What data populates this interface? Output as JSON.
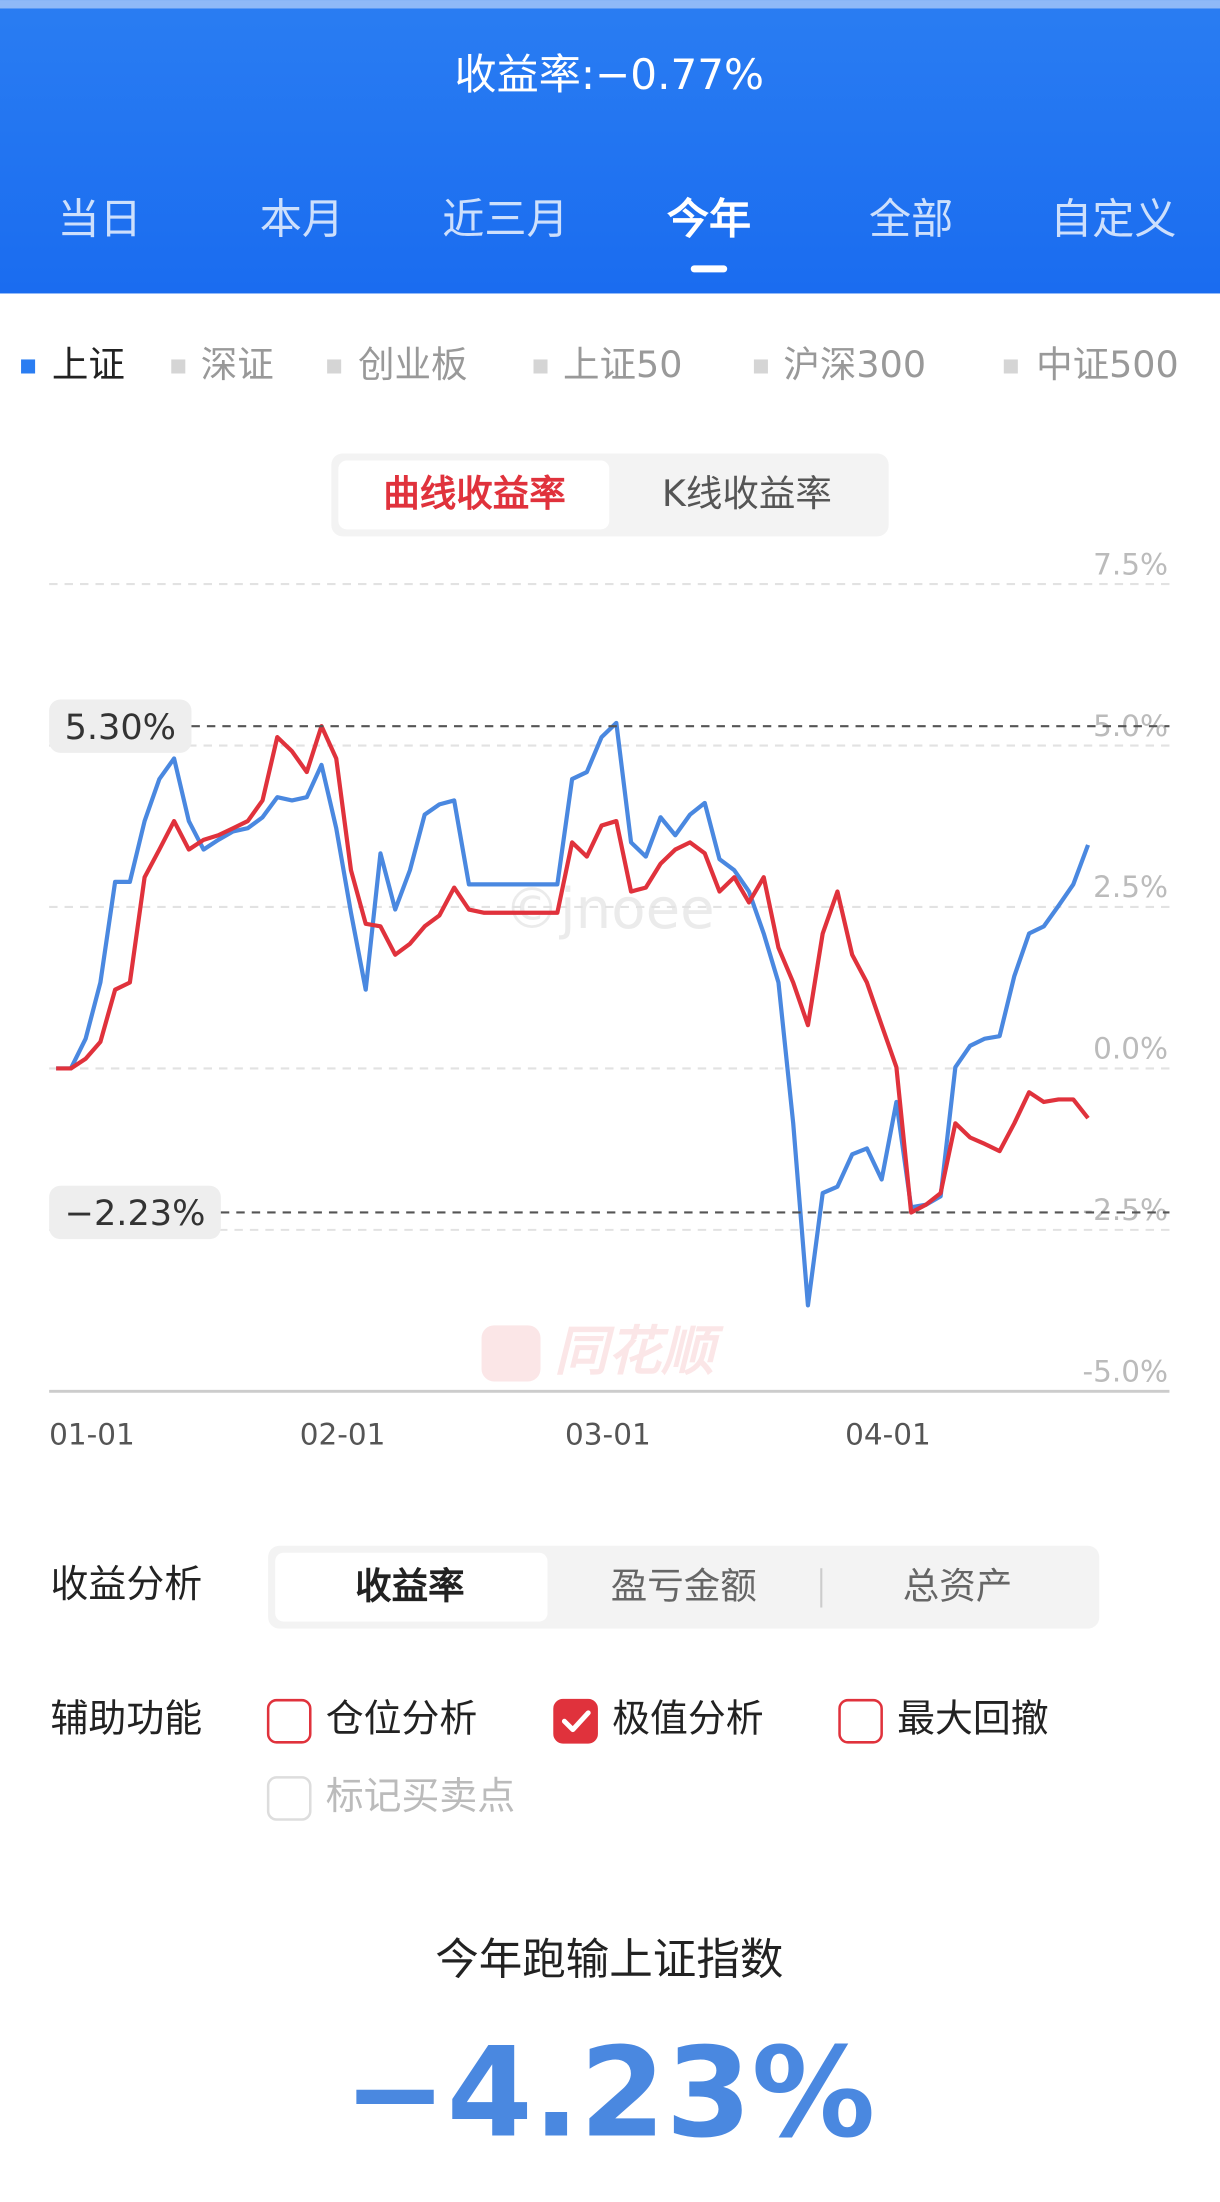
{
  "header": {
    "title": "收益率:−0.77%"
  },
  "period_tabs": {
    "items": [
      "当日",
      "本月",
      "近三月",
      "今年",
      "全部",
      "自定义"
    ],
    "active": 3
  },
  "index_tabs": {
    "items": [
      "上证",
      "深证",
      "创业板",
      "上证50",
      "沪深300",
      "中证500"
    ],
    "active": 0
  },
  "chart_toggle": {
    "items": [
      "曲线收益率",
      "K线收益率"
    ],
    "active": 0
  },
  "chart_data": {
    "type": "line",
    "grid": true,
    "categories": [
      "01-01",
      null,
      null,
      null,
      null,
      null,
      null,
      null,
      null,
      null,
      null,
      null,
      null,
      null,
      null,
      null,
      null,
      "02-01",
      null,
      null,
      null,
      null,
      null,
      null,
      null,
      null,
      null,
      null,
      null,
      null,
      null,
      null,
      null,
      null,
      null,
      "03-01",
      null,
      null,
      null,
      null,
      null,
      null,
      null,
      null,
      null,
      null,
      null,
      null,
      null,
      null,
      null,
      null,
      null,
      null,
      "04-01",
      null,
      null,
      null,
      null,
      null,
      null,
      null,
      null,
      null,
      null,
      null,
      null,
      null,
      null,
      null,
      null
    ],
    "series": [
      {
        "color": "#4a88e0",
        "values": [
          0,
          0,
          0.46,
          1.33,
          2.89,
          2.89,
          3.83,
          4.48,
          4.8,
          3.83,
          3.39,
          3.54,
          3.67,
          3.72,
          3.89,
          4.2,
          4.15,
          4.2,
          4.7,
          3.72,
          2.41,
          1.22,
          3.33,
          2.46,
          3.07,
          3.93,
          4.09,
          4.15,
          2.85,
          2.85,
          2.85,
          2.85,
          2.85,
          2.85,
          2.85,
          4.48,
          4.59,
          5.13,
          5.35,
          3.5,
          3.28,
          3.89,
          3.61,
          3.93,
          4.11,
          3.24,
          3.07,
          2.74,
          2.09,
          1.33,
          -0.85,
          -3.67,
          -1.93,
          -1.83,
          -1.33,
          -1.24,
          -1.72,
          -0.52,
          -2.15,
          -2.11,
          -1.98,
          0.02,
          0.35,
          0.46,
          0.5,
          1.43,
          2.09,
          2.2,
          2.52,
          2.85,
          3.46
        ]
      },
      {
        "color": "#e0323c",
        "values": [
          0,
          0,
          0.15,
          0.41,
          1.22,
          1.33,
          2.96,
          3.39,
          3.83,
          3.39,
          3.54,
          3.61,
          3.72,
          3.83,
          4.15,
          5.13,
          4.91,
          4.59,
          5.3,
          4.8,
          3.07,
          2.24,
          2.2,
          1.76,
          1.93,
          2.2,
          2.37,
          2.8,
          2.46,
          2.41,
          2.41,
          2.41,
          2.41,
          2.41,
          2.41,
          3.5,
          3.28,
          3.76,
          3.83,
          2.74,
          2.8,
          3.17,
          3.39,
          3.5,
          3.33,
          2.74,
          2.96,
          2.57,
          2.96,
          1.87,
          1.33,
          0.67,
          2.09,
          2.74,
          1.76,
          1.33,
          0.67,
          0.02,
          -2.23,
          -2.11,
          -1.93,
          -0.85,
          -1.07,
          -1.17,
          -1.28,
          -0.85,
          -0.37,
          -0.52,
          -0.48,
          -0.48,
          -0.77
        ]
      }
    ],
    "ylim": [
      -5,
      7.5
    ],
    "yticks": [
      {
        "value": 7.5,
        "label": "7.5%"
      },
      {
        "value": 5,
        "label": "5.0%"
      },
      {
        "value": 2.5,
        "label": "2.5%"
      },
      {
        "value": 0,
        "label": "0.0%"
      },
      {
        "value": -2.5,
        "label": "-2.5%"
      },
      {
        "value": -5,
        "label": "-5.0%"
      }
    ],
    "annotations": [
      {
        "value": 5.3,
        "label": "5.30%"
      },
      {
        "value": -2.23,
        "label": "−2.23%"
      }
    ],
    "watermarks": [
      "©jnoee",
      "同花顺"
    ]
  },
  "analysis": {
    "label": "收益分析",
    "options": [
      "收益率",
      "盈亏金额",
      "总资产"
    ],
    "active": 0
  },
  "assist": {
    "label": "辅助功能",
    "options": [
      {
        "label": "仓位分析",
        "checked": false,
        "enabled": true
      },
      {
        "label": "极值分析",
        "checked": true,
        "enabled": true
      },
      {
        "label": "最大回撤",
        "checked": false,
        "enabled": true
      },
      {
        "label": "标记买卖点",
        "checked": false,
        "enabled": false
      }
    ]
  },
  "summary": {
    "text": "今年跑输上证指数",
    "value": "−4.23%"
  }
}
